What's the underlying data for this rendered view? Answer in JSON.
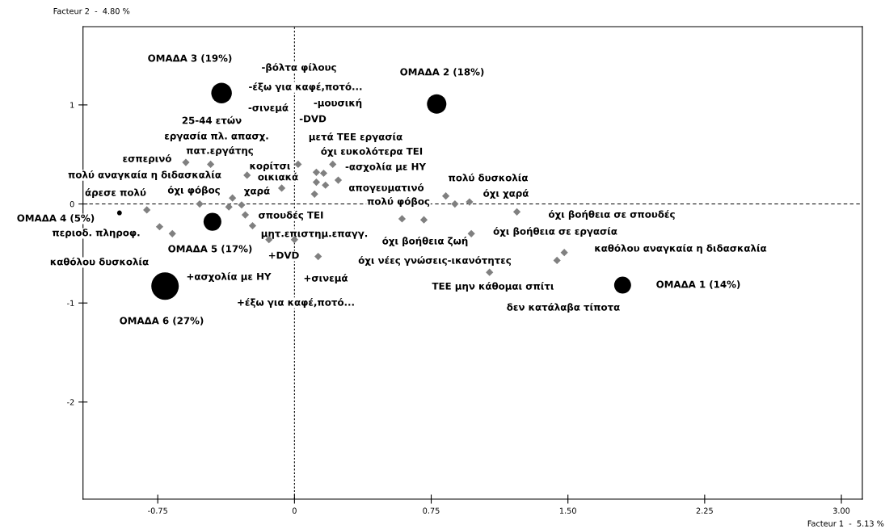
{
  "chart_data": {
    "type": "scatter",
    "xlabel": "Facteur 1  -  5.13 %",
    "ylabel": "Facteur 2  -  4.80 %",
    "xlim": [
      -1.16,
      3.115
    ],
    "ylim": [
      -2.98,
      1.79
    ],
    "xticks": [
      {
        "value": -0.75,
        "label": "-0.75"
      },
      0,
      {
        "value": 0.75,
        "label": "0.75"
      },
      {
        "value": 1.5,
        "label": "1.50"
      },
      {
        "value": 2.25,
        "label": "2.25"
      },
      {
        "value": 3,
        "label": "3.00"
      }
    ],
    "yticks": [
      -2,
      -1,
      0,
      1
    ],
    "grid": false,
    "legend": false,
    "ref_lines": [
      {
        "axis": "x",
        "value": 0,
        "line_style": "dotted",
        "color": "#000000"
      },
      {
        "axis": "y",
        "value": 0,
        "line_style": "dashed",
        "color": "#000000"
      }
    ],
    "series": [
      {
        "type": "bubble",
        "marker": "circle",
        "color": "#000000",
        "x": [
          1.8,
          0.78,
          -0.4,
          -0.96,
          -0.45,
          -0.71
        ],
        "values": [
          -0.82,
          1.01,
          1.12,
          -0.09,
          -0.18,
          -0.83
        ],
        "sizes": [
          0.38,
          0.5,
          0.56,
          0.03,
          0.42,
          1
        ]
      },
      {
        "marker": "diamond",
        "color": "#808080",
        "x": [
          -0.596,
          -0.46,
          -0.26,
          -0.07,
          -0.34,
          -0.52,
          -0.36,
          -0.29,
          -0.81,
          -0.27,
          -0.74,
          -0.67,
          -0.23,
          -0.14,
          0.0,
          0.02,
          0.21,
          0.12,
          0.16,
          0.12,
          0.17,
          0.24,
          0.11,
          0.83,
          0.88,
          0.96,
          0.59,
          0.71,
          1.22,
          0.97,
          0.13,
          1.07,
          1.48,
          1.44
        ],
        "values": [
          0.42,
          0.4,
          0.29,
          0.16,
          0.06,
          0.0,
          -0.03,
          -0.01,
          -0.06,
          -0.11,
          -0.23,
          -0.3,
          -0.22,
          -0.36,
          -0.36,
          0.4,
          0.4,
          0.32,
          0.31,
          0.22,
          0.19,
          0.24,
          0.1,
          0.08,
          0.0,
          0.02,
          -0.15,
          -0.16,
          -0.08,
          -0.3,
          -0.53,
          -0.69,
          -0.49,
          -0.57
        ]
      }
    ],
    "annotations": [
      "ΟΜΑΔΑ 1 (14%)",
      "ΟΜΑΔΑ 2 (18%)",
      "ΟΜΑΔΑ 3 (19%)",
      "ΟΜΑΔΑ 4 (5%)",
      "ΟΜΑΔΑ 5 (17%)",
      "ΟΜΑΔΑ 6 (27%)",
      "-βόλτα φίλους",
      "-έξω για καφέ,ποτό...",
      "-σινεμά",
      "-μουσική",
      "-DVD",
      "μετά ΤΕΕ εργασία",
      "όχι ευκολότερα ΤΕΙ",
      "-ασχολία με ΗΥ",
      "απογευματινό",
      "πολύ φόβος",
      "πολύ δυσκολία",
      "όχι χαρά",
      "όχι βοήθεια σε σπουδές",
      "όχι βοήθεια σε εργασία",
      "καθόλου αναγκαία η διδασκαλία",
      "όχι βοήθεια ζωή",
      "όχι νέες γνώσεις-ικανότητες",
      "ΤΕΕ μην κάθομαι σπίτι",
      "δεν κατάλαβα τίποτα",
      "+σινεμά",
      "+έξω για καφέ,ποτό...",
      "+ασχολία με ΗΥ",
      "+DVD",
      "μητ.επιστημ.επαγγ.",
      "σπουδές ΤΕΙ",
      "καθόλου δυσκολία",
      "περιοδ. πληροφ.",
      "άρεσε πολύ",
      "πολύ αναγκαία η διδασκαλία",
      "όχι φόβος",
      "χαρά",
      "οικιακά",
      "κορίτσι",
      "εσπερινό",
      "πατ.εργάτης",
      "εργασία πλ. απασχ.",
      "25-44 ετών"
    ]
  }
}
